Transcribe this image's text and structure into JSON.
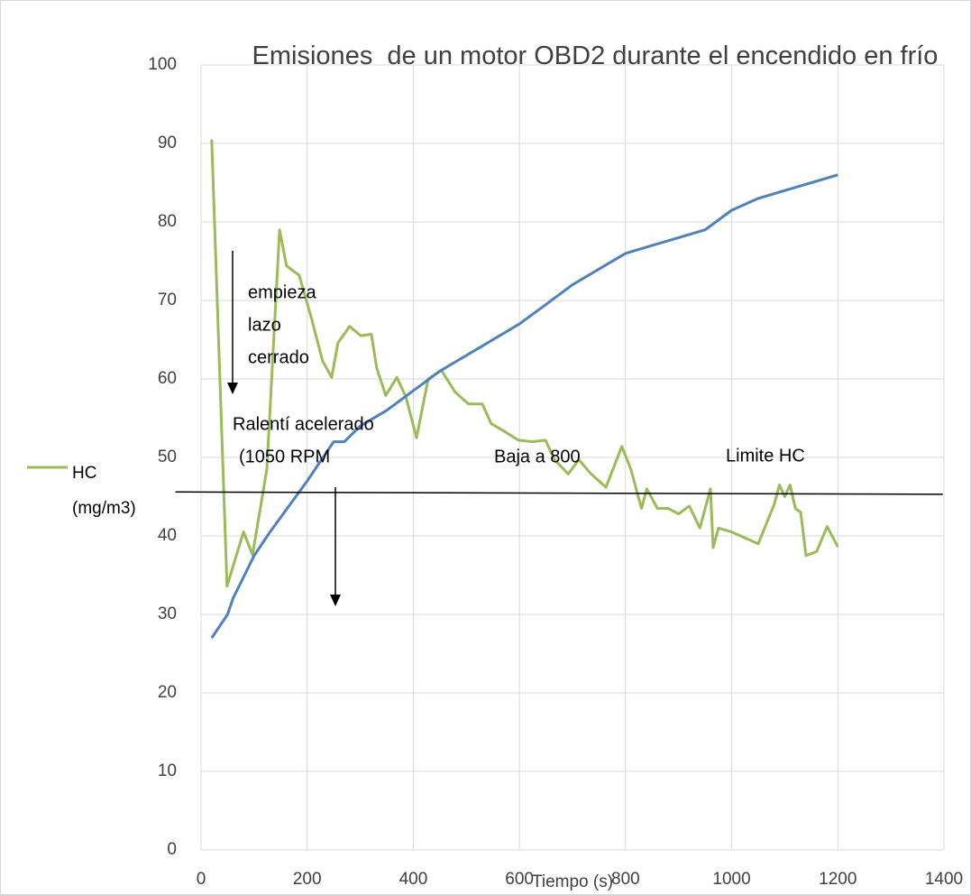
{
  "chart_data": {
    "type": "line",
    "title": "Emisiones  de un motor OBD2 durante el encendido en frío",
    "x_label": "Tiempo (s)",
    "xlim": [
      0,
      1400
    ],
    "xticks": [
      0,
      200,
      400,
      600,
      800,
      1000,
      1200,
      1400
    ],
    "ylim": [
      0,
      100
    ],
    "yticks": [
      0,
      10,
      20,
      30,
      40,
      50,
      60,
      70,
      80,
      90,
      100
    ],
    "grid": true,
    "series": [
      {
        "name": "HC (mg/m3)",
        "color": "#9bbb59",
        "x": [
          20,
          49,
          80,
          97,
          124,
          148,
          161,
          185,
          207,
          229,
          246,
          258,
          280,
          301,
          321,
          331,
          348,
          369,
          386,
          406,
          428,
          453,
          479,
          504,
          530,
          547,
          572,
          598,
          624,
          649,
          666,
          692,
          712,
          735,
          763,
          793,
          810,
          830,
          840,
          860,
          880,
          900,
          920,
          940,
          960,
          965,
          975,
          1000,
          1050,
          1080,
          1090,
          1100,
          1110,
          1120,
          1130,
          1140,
          1160,
          1180,
          1200
        ],
        "values": [
          90.5,
          33.6,
          40.5,
          37.6,
          48.5,
          79,
          74.4,
          73.2,
          68,
          62.3,
          60.2,
          64.6,
          66.7,
          65.5,
          65.7,
          61.4,
          57.9,
          60.2,
          57.7,
          52.5,
          60,
          61.1,
          58.3,
          56.8,
          56.8,
          54.3,
          53.3,
          52.2,
          52,
          52.2,
          49.7,
          47.9,
          49.7,
          47.9,
          46.2,
          51.4,
          48.5,
          43.5,
          46,
          43.5,
          43.5,
          42.8,
          43.8,
          41,
          46,
          38.5,
          41,
          40.5,
          39,
          44,
          46.5,
          45,
          46.5,
          43.5,
          43,
          37.5,
          38,
          41.2,
          38.6
        ]
      },
      {
        "color": "#4f81bd",
        "x": [
          20,
          50,
          60,
          100,
          130,
          200,
          250,
          270,
          300,
          350,
          400,
          450,
          500,
          600,
          650,
          700,
          750,
          800,
          850,
          900,
          950,
          1000,
          1050,
          1100,
          1150,
          1200
        ],
        "values": [
          27,
          30,
          32,
          37.5,
          40.5,
          47,
          52,
          52,
          54,
          56,
          58.5,
          61,
          63,
          67,
          69.5,
          72,
          74,
          76,
          77,
          78,
          79,
          81.5,
          83,
          84,
          85,
          86
        ]
      },
      {
        "color": "#000000",
        "x": [
          -48,
          1398
        ],
        "values": [
          45.6,
          45.3
        ]
      }
    ],
    "annotations": [
      "empieza",
      "lazo",
      "cerrado",
      "Ralentí acelerado",
      "(1050 RPM",
      "Baja a 800",
      "Limite HC"
    ]
  }
}
